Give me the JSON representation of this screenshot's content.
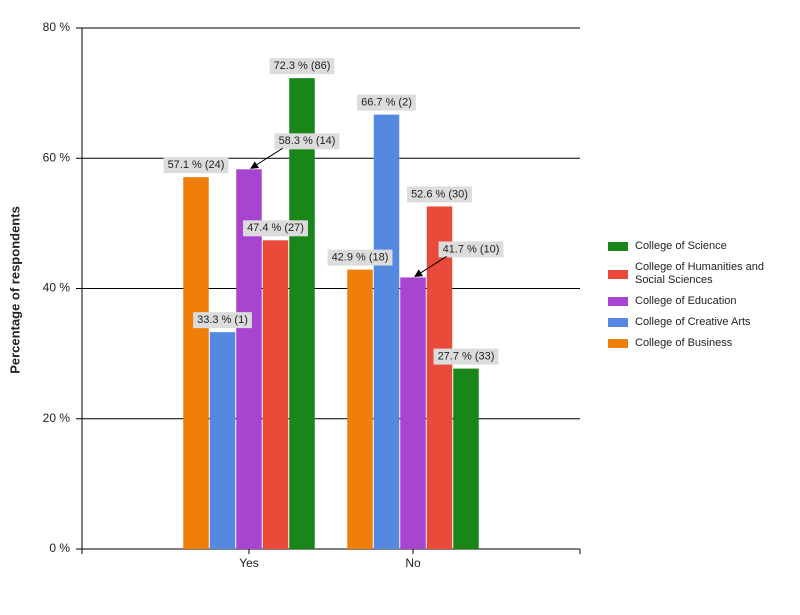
{
  "chart_data": {
    "type": "bar",
    "y_label": "Percentage of respondents",
    "categories": [
      "Yes",
      "No"
    ],
    "series": [
      {
        "name": "College of Business",
        "color": "#f07f0a",
        "values": [
          57.1,
          42.9
        ],
        "value_labels": [
          "57.1 % (24)",
          "42.9 % (18)"
        ]
      },
      {
        "name": "College of Creative Arts",
        "color": "#5588e0",
        "values": [
          33.3,
          66.7
        ],
        "value_labels": [
          "33.3 % (1)",
          "66.7 % (2)"
        ]
      },
      {
        "name": "College of Education",
        "color": "#a845d0",
        "values": [
          58.3,
          41.7
        ],
        "value_labels": [
          "58.3 % (14)",
          "41.7 % (10)"
        ]
      },
      {
        "name": "College of Humanities and Social Sciences",
        "color": "#ea4a3a",
        "values": [
          47.4,
          52.6
        ],
        "value_labels": [
          "47.4 % (27)",
          "52.6 % (30)"
        ]
      },
      {
        "name": "College of Science",
        "color": "#1a861a",
        "values": [
          72.3,
          27.7
        ],
        "value_labels": [
          "72.3 % (86)",
          "27.7 % (33)"
        ]
      }
    ],
    "ylim": [
      0,
      80
    ],
    "yticks": [
      {
        "value": 0,
        "label": "0 %"
      },
      {
        "value": 20,
        "label": "20 %"
      },
      {
        "value": 40,
        "label": "40 %"
      },
      {
        "value": 60,
        "label": "60 %"
      },
      {
        "value": 80,
        "label": "80 %"
      }
    ],
    "grid": true,
    "legend": "right"
  }
}
